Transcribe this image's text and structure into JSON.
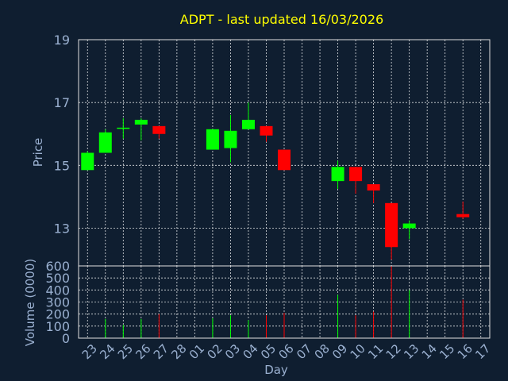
{
  "chart_data": {
    "type": "candlestick",
    "title": "ADPT - last updated 16/03/2026",
    "xlabel": "Day",
    "ylabel": "Price",
    "volume_label": "Volume (0000)",
    "price_ylim": [
      11.8,
      19
    ],
    "volume_ylim": [
      0,
      600
    ],
    "price_ticks": [
      "13",
      "15",
      "17",
      "19"
    ],
    "volume_ticks": [
      "0",
      "100",
      "200",
      "300",
      "400",
      "500",
      "600"
    ],
    "grid": true,
    "up_color": "#00ff00",
    "down_color": "#ff0000",
    "categories": [
      "23",
      "24",
      "25",
      "26",
      "27",
      "28",
      "01",
      "02",
      "03",
      "04",
      "05",
      "06",
      "07",
      "08",
      "09",
      "10",
      "11",
      "12",
      "13",
      "14",
      "15",
      "16",
      "17"
    ],
    "candles": [
      {
        "day": "23",
        "open": 14.85,
        "high": 15.45,
        "low": 14.85,
        "close": 15.4,
        "volume": 0
      },
      {
        "day": "24",
        "open": 15.4,
        "high": 16.15,
        "low": 15.4,
        "close": 16.05,
        "volume": 160
      },
      {
        "day": "25",
        "open": 16.2,
        "high": 16.5,
        "low": 15.85,
        "close": 16.2,
        "volume": 110
      },
      {
        "day": "26",
        "open": 16.3,
        "high": 16.5,
        "low": 15.8,
        "close": 16.45,
        "volume": 160
      },
      {
        "day": "27",
        "open": 16.25,
        "high": 16.25,
        "low": 15.85,
        "close": 16.0,
        "volume": 200
      },
      {
        "day": "28",
        "open": null,
        "high": null,
        "low": null,
        "close": null,
        "volume": 0
      },
      {
        "day": "01",
        "open": null,
        "high": null,
        "low": null,
        "close": null,
        "volume": 0
      },
      {
        "day": "02",
        "open": 15.5,
        "high": 16.15,
        "low": 15.5,
        "close": 16.15,
        "volume": 165
      },
      {
        "day": "03",
        "open": 15.55,
        "high": 16.6,
        "low": 15.1,
        "close": 16.1,
        "volume": 190
      },
      {
        "day": "04",
        "open": 16.15,
        "high": 17.0,
        "low": 16.15,
        "close": 16.45,
        "volume": 150
      },
      {
        "day": "05",
        "open": 16.25,
        "high": 16.25,
        "low": 15.75,
        "close": 15.95,
        "volume": 190
      },
      {
        "day": "06",
        "open": 15.5,
        "high": 15.5,
        "low": 14.85,
        "close": 14.85,
        "volume": 210
      },
      {
        "day": "07",
        "open": null,
        "high": null,
        "low": null,
        "close": null,
        "volume": 0
      },
      {
        "day": "08",
        "open": null,
        "high": null,
        "low": null,
        "close": null,
        "volume": 0
      },
      {
        "day": "09",
        "open": 14.5,
        "high": 15.15,
        "low": 14.25,
        "close": 14.95,
        "volume": 360
      },
      {
        "day": "10",
        "open": 14.95,
        "high": 14.95,
        "low": 14.1,
        "close": 14.5,
        "volume": 190
      },
      {
        "day": "11",
        "open": 14.4,
        "high": 14.4,
        "low": 13.8,
        "close": 14.2,
        "volume": 220
      },
      {
        "day": "12",
        "open": 13.8,
        "high": 13.8,
        "low": 12.0,
        "close": 12.4,
        "volume": 600
      },
      {
        "day": "13",
        "open": 13.0,
        "high": 13.25,
        "low": 12.65,
        "close": 13.15,
        "volume": 400
      },
      {
        "day": "14",
        "open": null,
        "high": null,
        "low": null,
        "close": null,
        "volume": 0
      },
      {
        "day": "15",
        "open": null,
        "high": null,
        "low": null,
        "close": null,
        "volume": 0
      },
      {
        "day": "16",
        "open": 13.45,
        "high": 13.85,
        "low": 13.3,
        "close": 13.35,
        "volume": 320
      },
      {
        "day": "17",
        "open": null,
        "high": null,
        "low": null,
        "close": null,
        "volume": 0
      }
    ]
  }
}
